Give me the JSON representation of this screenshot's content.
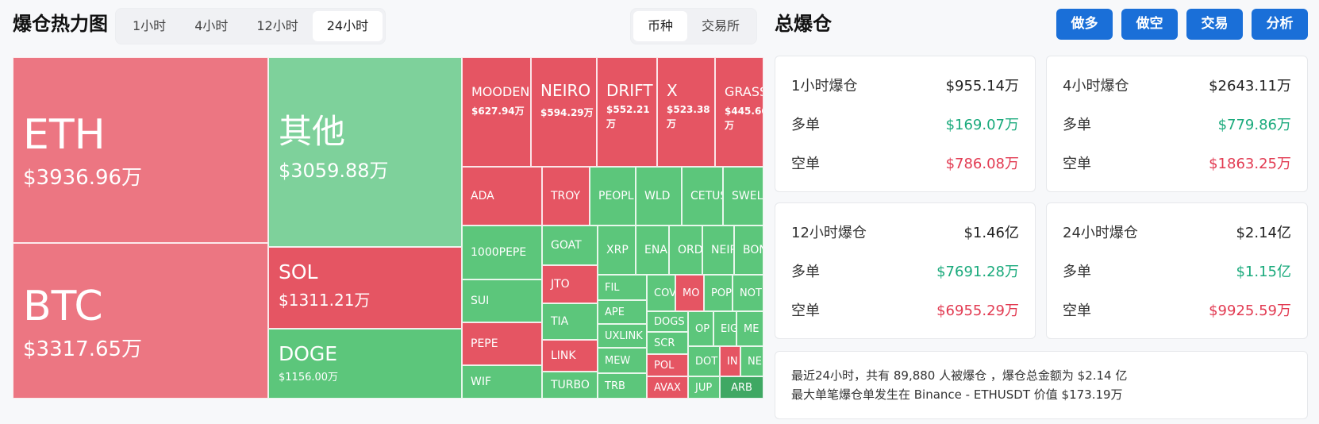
{
  "heatmap": {
    "title": "爆仓热力图",
    "time_tabs": [
      "1小时",
      "4小时",
      "12小时",
      "24小时"
    ],
    "active_time": "24小时",
    "view_tabs": [
      "币种",
      "交易所"
    ],
    "active_view": "币种",
    "cells": {
      "eth": {
        "name": "ETH",
        "value": "$3936.96万"
      },
      "btc": {
        "name": "BTC",
        "value": "$3317.65万"
      },
      "other": {
        "name": "其他",
        "value": "$3059.88万"
      },
      "sol": {
        "name": "SOL",
        "value": "$1311.21万"
      },
      "doge": {
        "name": "DOGE",
        "value": "$1156.00万"
      },
      "moodeng": {
        "name": "MOODEN",
        "value": "$627.94万"
      },
      "neiro": {
        "name": "NEIRO",
        "value": "$594.29万"
      },
      "drift": {
        "name": "DRIFT",
        "value": "$552.21万"
      },
      "x": {
        "name": "X",
        "value": "$523.38万"
      },
      "grass": {
        "name": "GRASS",
        "value": "$445.66万"
      },
      "small": [
        "ADA",
        "TROY",
        "PEOPL",
        "WLD",
        "CETUS",
        "SWEL",
        "1000PEPE",
        "GOAT",
        "XRP",
        "ENA",
        "ORD",
        "NEIR",
        "BON",
        "SUI",
        "JTO",
        "FIL",
        "COV",
        "MO",
        "POP",
        "NOT",
        "TIA",
        "APE",
        "DOGS",
        "OP",
        "EIG",
        "ME",
        "PEPE",
        "LINK",
        "UXLINK",
        "SCR",
        "DOT",
        "IN",
        "NE",
        "WIF",
        "TURBO",
        "MEW",
        "POL",
        "JUP",
        "TRB",
        "AVAX",
        "ARB"
      ]
    }
  },
  "stats": {
    "title": "总爆仓",
    "actions": [
      "做多",
      "做空",
      "交易",
      "分析"
    ],
    "long_label": "多单",
    "short_label": "空单",
    "periods": [
      {
        "label": "1小时爆仓",
        "total": "$955.14万",
        "long": "$169.07万",
        "short": "$786.08万"
      },
      {
        "label": "4小时爆仓",
        "total": "$2643.11万",
        "long": "$779.86万",
        "short": "$1863.25万"
      },
      {
        "label": "12小时爆仓",
        "total": "$1.46亿",
        "long": "$7691.28万",
        "short": "$6955.29万"
      },
      {
        "label": "24小时爆仓",
        "total": "$2.14亿",
        "long": "$1.15亿",
        "short": "$9925.59万"
      }
    ],
    "summary_line1": "最近24小时，共有 89,880 人被爆仓 ，爆仓总金额为 $2.14 亿",
    "summary_line2": "最大单笔爆仓单发生在 Binance - ETHUSDT 价值 $173.19万"
  }
}
